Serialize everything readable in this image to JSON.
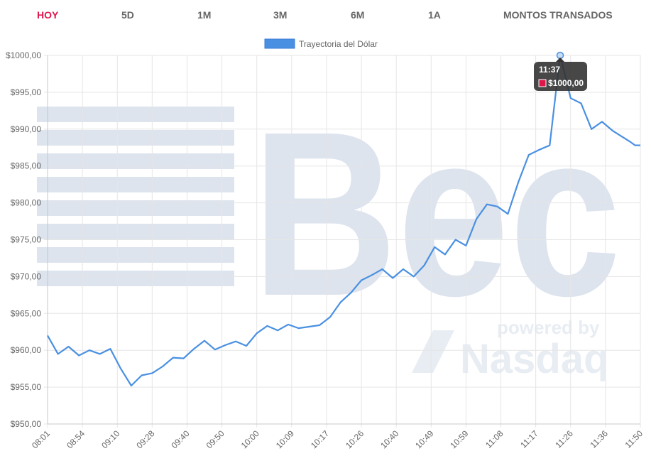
{
  "tabs": [
    {
      "label": "HOY",
      "active": true
    },
    {
      "label": "5D",
      "active": false
    },
    {
      "label": "1M",
      "active": false
    },
    {
      "label": "3M",
      "active": false
    },
    {
      "label": "6M",
      "active": false
    },
    {
      "label": "1A",
      "active": false
    },
    {
      "label": "MONTOS TRANSADOS",
      "active": false
    }
  ],
  "watermark": {
    "brand": "Bec",
    "powered": "powered by",
    "partner": "Nasdaq"
  },
  "colors": {
    "line": "#4a90e2",
    "active_tab": "#e0164b",
    "tooltip_bg": "#333333",
    "tooltip_swatch": "#e0164b"
  },
  "tooltip": {
    "time": "11:37",
    "value": "$1000,00"
  },
  "chart_data": {
    "type": "line",
    "title": "",
    "xlabel": "",
    "ylabel": "",
    "ylim": [
      950,
      1000
    ],
    "y_ticks": [
      950,
      955,
      960,
      965,
      970,
      975,
      980,
      985,
      990,
      995,
      1000
    ],
    "y_tick_labels": [
      "$950,00",
      "$955,00",
      "$960,00",
      "$965,00",
      "$970,00",
      "$975,00",
      "$980,00",
      "$985,00",
      "$990,00",
      "$995,00",
      "$1000,00"
    ],
    "x_tick_labels": [
      "08:01",
      "08:54",
      "09:10",
      "09:28",
      "09:40",
      "09:50",
      "10:00",
      "10:09",
      "10:17",
      "10:26",
      "10:40",
      "10:49",
      "10:59",
      "11:08",
      "11:17",
      "11:26",
      "11:36",
      "11:50"
    ],
    "grid": true,
    "legend": {
      "placement": "top-center"
    },
    "series": [
      {
        "name": "Trayectoria del Dólar",
        "x": [
          0,
          0.3,
          0.6,
          0.9,
          1.2,
          1.5,
          1.8,
          2.1,
          2.4,
          2.7,
          3.0,
          3.3,
          3.6,
          3.9,
          4.2,
          4.5,
          4.8,
          5.1,
          5.4,
          5.7,
          6.0,
          6.3,
          6.6,
          6.9,
          7.2,
          7.5,
          7.8,
          8.1,
          8.4,
          8.7,
          9.0,
          9.3,
          9.6,
          9.9,
          10.2,
          10.5,
          10.8,
          11.1,
          11.4,
          11.7,
          12.0,
          12.3,
          12.6,
          12.9,
          13.2,
          13.5,
          13.8,
          14.1,
          14.4,
          14.7,
          15.0,
          15.3,
          15.6,
          15.9,
          16.2,
          16.5,
          16.7,
          16.85,
          17.0
        ],
        "values": [
          962.0,
          959.5,
          960.5,
          959.3,
          960.0,
          959.5,
          960.2,
          957.5,
          955.2,
          956.6,
          956.9,
          957.8,
          959.0,
          958.9,
          960.2,
          961.3,
          960.1,
          960.7,
          961.2,
          960.6,
          962.3,
          963.3,
          962.7,
          963.5,
          963.0,
          963.2,
          963.4,
          964.5,
          966.5,
          967.8,
          969.5,
          970.2,
          971.0,
          969.8,
          971.0,
          970.0,
          971.5,
          974.0,
          973.0,
          975.0,
          974.2,
          977.8,
          979.8,
          979.5,
          978.5,
          982.8,
          986.5,
          987.2,
          987.8,
          1000.0,
          994.2,
          993.5,
          990.0,
          991.0,
          989.8,
          988.9,
          988.3,
          987.8,
          987.8
        ]
      }
    ]
  }
}
